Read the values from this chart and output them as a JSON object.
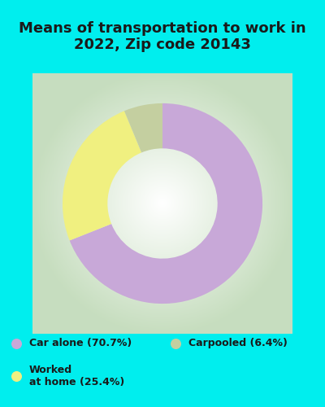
{
  "title": "Means of transportation to work in\n2022, Zip code 20143",
  "slices": [
    70.7,
    25.4,
    6.4
  ],
  "labels": [
    "Car alone (70.7%)",
    "Worked\nat home (25.4%)",
    "Carpooled (6.4%)"
  ],
  "colors": [
    "#C8A8D8",
    "#F0F080",
    "#C4CFA0"
  ],
  "bg_outer": "#00EEEE",
  "bg_chart_center": "#FFFFFF",
  "bg_chart_edge": "#C8DCC0",
  "title_color": "#1a1a1a",
  "title_fontsize": 13,
  "donut_width": 0.45,
  "start_angle": 90,
  "legend_fontsize": 9
}
